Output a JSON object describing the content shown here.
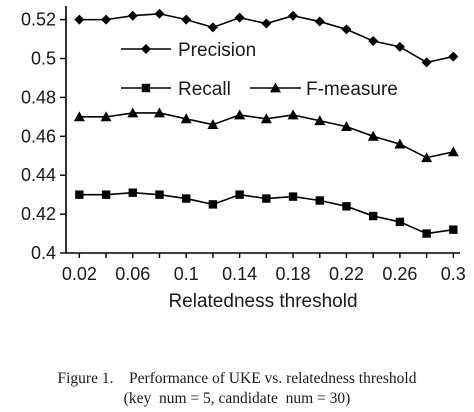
{
  "chart_data": {
    "type": "line",
    "x": [
      0.02,
      0.04,
      0.06,
      0.08,
      0.1,
      0.12,
      0.14,
      0.16,
      0.18,
      0.2,
      0.22,
      0.24,
      0.26,
      0.28,
      0.3
    ],
    "series": [
      {
        "name": "Precision",
        "marker": "diamond",
        "values": [
          0.52,
          0.52,
          0.522,
          0.523,
          0.52,
          0.516,
          0.521,
          0.518,
          0.522,
          0.519,
          0.515,
          0.509,
          0.506,
          0.498,
          0.501
        ]
      },
      {
        "name": "Recall",
        "marker": "square",
        "values": [
          0.43,
          0.43,
          0.431,
          0.43,
          0.428,
          0.425,
          0.43,
          0.428,
          0.429,
          0.427,
          0.424,
          0.419,
          0.416,
          0.41,
          0.412
        ]
      },
      {
        "name": "F-measure",
        "marker": "triangle",
        "values": [
          0.47,
          0.47,
          0.472,
          0.472,
          0.469,
          0.466,
          0.471,
          0.469,
          0.471,
          0.468,
          0.465,
          0.46,
          0.456,
          0.449,
          0.452
        ]
      }
    ],
    "xticks": [
      "0.02",
      "0.06",
      "0.1",
      "0.14",
      "0.18",
      "0.22",
      "0.26",
      "0.3"
    ],
    "xtick_values": [
      0.02,
      0.06,
      0.1,
      0.14,
      0.18,
      0.22,
      0.26,
      0.3
    ],
    "yticks": [
      "0.4",
      "0.42",
      "0.44",
      "0.46",
      "0.48",
      "0.5",
      "0.52"
    ],
    "ytick_values": [
      0.4,
      0.42,
      0.44,
      0.46,
      0.48,
      0.5,
      0.52
    ],
    "xlim": [
      0.01,
      0.305
    ],
    "ylim": [
      0.4,
      0.527
    ],
    "xlabel": "Relatedness threshold",
    "ylabel": "",
    "grid": false,
    "line_color": "#000000"
  },
  "caption": {
    "line1": "Figure 1.    Performance of UKE vs. relatedness threshold",
    "line2": "(key  num = 5, candidate  num = 30)"
  }
}
